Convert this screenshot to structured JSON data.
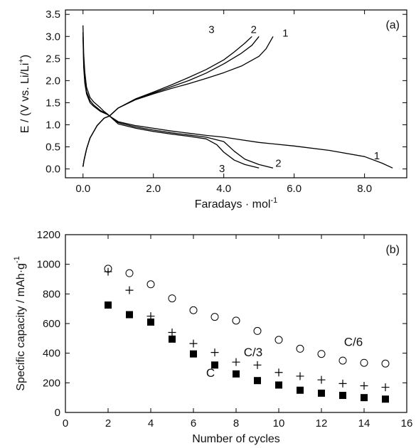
{
  "chart_data": [
    {
      "panel": "(a)",
      "type": "line",
      "xlabel": "Faradays · mol",
      "xlabel_superscript": "-1",
      "ylabel": "E / (V vs. Li/Li",
      "ylabel_superscript": "+",
      "ylabel_end": ")",
      "xlim": [
        -0.5,
        9.2
      ],
      "ylim": [
        -0.2,
        3.6
      ],
      "xticks": [
        0,
        2,
        4,
        6,
        8
      ],
      "xtick_labels": [
        "0.0",
        "2.0",
        "4.0",
        "6.0",
        "8.0"
      ],
      "yticks": [
        0,
        0.5,
        1,
        1.5,
        2,
        2.5,
        3,
        3.5
      ],
      "ytick_labels": [
        "0.0",
        "0.5",
        "1.0",
        "1.5",
        "2.0",
        "2.5",
        "3.0",
        "3.5"
      ],
      "series": [
        {
          "label": "1",
          "role": "discharge",
          "x": [
            0.0,
            0.02,
            0.05,
            0.1,
            0.2,
            0.3,
            0.4,
            0.5,
            0.6,
            0.7,
            0.75,
            1.0,
            1.5,
            2.0,
            2.5,
            3.0,
            3.5,
            4.0,
            4.5,
            5.0,
            6.0,
            7.0,
            8.0,
            8.5,
            8.8
          ],
          "y": [
            3.25,
            2.6,
            2.2,
            1.85,
            1.62,
            1.52,
            1.45,
            1.38,
            1.3,
            1.24,
            1.2,
            1.07,
            0.98,
            0.92,
            0.86,
            0.81,
            0.76,
            0.72,
            0.66,
            0.6,
            0.52,
            0.42,
            0.28,
            0.13,
            0.02
          ]
        },
        {
          "label": "2",
          "role": "discharge",
          "x": [
            0.0,
            0.02,
            0.05,
            0.1,
            0.2,
            0.3,
            0.5,
            0.7,
            0.75,
            1.0,
            1.5,
            2.0,
            2.5,
            3.0,
            3.5,
            4.0,
            4.3,
            4.6,
            5.0,
            5.4
          ],
          "y": [
            3.1,
            2.4,
            2.0,
            1.75,
            1.55,
            1.45,
            1.32,
            1.24,
            1.2,
            1.05,
            0.95,
            0.88,
            0.82,
            0.77,
            0.72,
            0.62,
            0.4,
            0.22,
            0.1,
            0.02
          ]
        },
        {
          "label": "3",
          "role": "discharge",
          "x": [
            0.0,
            0.02,
            0.05,
            0.1,
            0.2,
            0.3,
            0.5,
            0.7,
            0.75,
            1.0,
            1.5,
            2.0,
            2.5,
            3.0,
            3.5,
            3.8,
            4.0,
            4.3,
            4.6,
            5.0
          ],
          "y": [
            3.0,
            2.3,
            1.95,
            1.7,
            1.5,
            1.42,
            1.3,
            1.23,
            1.2,
            1.02,
            0.92,
            0.85,
            0.79,
            0.74,
            0.68,
            0.55,
            0.38,
            0.2,
            0.1,
            0.02
          ]
        },
        {
          "label": "1",
          "role": "charge",
          "x": [
            0.0,
            0.03,
            0.1,
            0.2,
            0.4,
            0.6,
            0.75,
            1.0,
            1.5,
            2.0,
            2.5,
            3.0,
            3.5,
            4.0,
            4.5,
            5.0,
            5.2,
            5.4
          ],
          "y": [
            0.05,
            0.2,
            0.45,
            0.7,
            0.98,
            1.15,
            1.2,
            1.38,
            1.57,
            1.7,
            1.82,
            1.93,
            2.05,
            2.18,
            2.33,
            2.55,
            2.72,
            3.0
          ]
        },
        {
          "label": "2",
          "role": "charge",
          "x": [
            0.0,
            0.03,
            0.1,
            0.2,
            0.4,
            0.6,
            0.75,
            1.0,
            1.5,
            2.0,
            2.5,
            3.0,
            3.5,
            4.0,
            4.5,
            4.8,
            5.0
          ],
          "y": [
            0.05,
            0.2,
            0.45,
            0.7,
            0.98,
            1.15,
            1.2,
            1.38,
            1.58,
            1.72,
            1.86,
            2.0,
            2.17,
            2.38,
            2.62,
            2.8,
            3.0
          ]
        },
        {
          "label": "3",
          "role": "charge",
          "x": [
            0.0,
            0.03,
            0.1,
            0.2,
            0.4,
            0.6,
            0.75,
            1.0,
            1.5,
            2.0,
            2.5,
            3.0,
            3.5,
            4.0,
            4.3,
            4.6,
            4.8
          ],
          "y": [
            0.05,
            0.2,
            0.45,
            0.7,
            0.98,
            1.15,
            1.2,
            1.38,
            1.59,
            1.74,
            1.9,
            2.07,
            2.25,
            2.47,
            2.65,
            2.85,
            3.0
          ]
        }
      ],
      "annotations": [
        {
          "text": "3",
          "x": 3.65,
          "y": 3.08
        },
        {
          "text": "2",
          "x": 4.85,
          "y": 3.08
        },
        {
          "text": "1",
          "x": 5.75,
          "y": 3.0
        },
        {
          "text": "1",
          "x": 8.35,
          "y": 0.22
        },
        {
          "text": "2",
          "x": 5.55,
          "y": 0.05
        },
        {
          "text": "3",
          "x": 3.95,
          "y": -0.07
        }
      ]
    },
    {
      "panel": "(b)",
      "type": "scatter",
      "xlabel": "Number of cycles",
      "ylabel": "Specific capacity / mAh·g",
      "ylabel_superscript": "-1",
      "xlim": [
        0,
        16
      ],
      "ylim": [
        0,
        1200
      ],
      "xticks": [
        0,
        2,
        4,
        6,
        8,
        10,
        12,
        14,
        16
      ],
      "xtick_labels": [
        "0",
        "2",
        "4",
        "6",
        "8",
        "10",
        "12",
        "14",
        "16"
      ],
      "yticks": [
        0,
        200,
        400,
        600,
        800,
        1000,
        1200
      ],
      "ytick_labels": [
        "0",
        "200",
        "400",
        "600",
        "800",
        "1000",
        "1200"
      ],
      "series": [
        {
          "name": "C/6",
          "marker": "circle",
          "x": [
            2,
            3,
            4,
            5,
            6,
            7,
            8,
            9,
            10,
            11,
            12,
            13,
            14,
            15
          ],
          "y": [
            970,
            940,
            865,
            770,
            690,
            645,
            620,
            550,
            490,
            430,
            395,
            350,
            335,
            330
          ]
        },
        {
          "name": "C/3",
          "marker": "plus",
          "x": [
            2,
            3,
            4,
            5,
            6,
            7,
            8,
            9,
            10,
            11,
            12,
            13,
            14,
            15
          ],
          "y": [
            950,
            825,
            650,
            540,
            465,
            405,
            340,
            320,
            270,
            245,
            220,
            195,
            180,
            170
          ]
        },
        {
          "name": "C",
          "marker": "square",
          "x": [
            2,
            3,
            4,
            5,
            6,
            7,
            8,
            9,
            10,
            11,
            12,
            13,
            14,
            15
          ],
          "y": [
            725,
            660,
            610,
            495,
            395,
            320,
            260,
            215,
            185,
            150,
            130,
            115,
            100,
            90
          ]
        }
      ],
      "annotations": [
        {
          "text": "C/6",
          "x": 13.5,
          "y": 450
        },
        {
          "text": "C/3",
          "x": 8.8,
          "y": 380
        },
        {
          "text": "C",
          "x": 6.8,
          "y": 240
        }
      ]
    }
  ]
}
